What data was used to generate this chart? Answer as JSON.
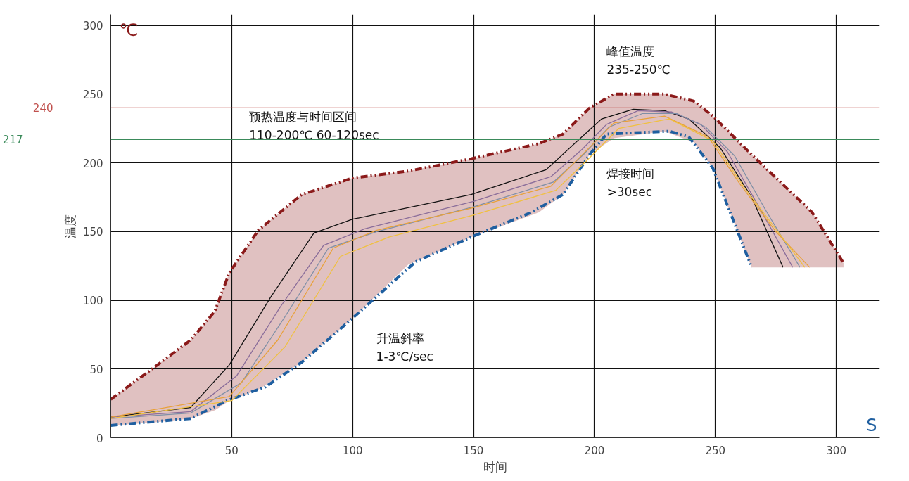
{
  "chart_data": {
    "type": "line",
    "xlabel": "时间",
    "ylabel": "温度",
    "xlim": [
      0,
      318
    ],
    "ylim": [
      0,
      308
    ],
    "xticks": [
      50,
      100,
      150,
      200,
      250,
      300
    ],
    "yticks": [
      0,
      50,
      100,
      150,
      200,
      250,
      300
    ],
    "grid": true,
    "ref_lines": [
      {
        "axis": "y",
        "value": 240,
        "label": "240",
        "color": "#c0504d"
      },
      {
        "axis": "y",
        "value": 217,
        "label": "217",
        "color": "#3a8a5a"
      }
    ],
    "annotations": [
      "℃",
      "S",
      "峰值温度\n235-250℃",
      "预热温度与时间区间\n110-200℃ 60-120sec",
      "焊接时间\n>30sec",
      "升温斜率\n1-3℃/sec"
    ],
    "series": [
      {
        "line_style": "dashed",
        "color": "#8b1a1a",
        "lower": [
          9,
          11,
          14,
          20,
          27,
          35,
          55,
          87,
          126,
          146,
          164,
          177,
          206,
          218,
          223,
          215,
          196,
          124,
          124,
          124
        ],
        "upper": [
          28,
          50,
          71,
          92,
          120,
          151,
          177,
          189,
          194,
          203,
          214,
          221,
          240,
          250,
          250,
          245,
          234,
          206,
          164,
          127
        ],
        "x": [
          0,
          17,
          33,
          43,
          49,
          61,
          79,
          100,
          123,
          149,
          177,
          187,
          198,
          208,
          229,
          241,
          249,
          265,
          290,
          303
        ],
        "values": [
          28,
          50,
          71,
          92,
          120,
          151,
          177,
          189,
          194,
          203,
          214,
          221,
          240,
          250,
          250,
          245,
          234,
          206,
          164,
          127
        ]
      },
      {
        "line_style": "dashed",
        "color": "#1f5fa0",
        "x": [
          0,
          33,
          48,
          64,
          79,
          100,
          126,
          149,
          174,
          187,
          198,
          205,
          231,
          239,
          249,
          265
        ],
        "values": [
          9,
          14,
          27,
          37,
          55,
          87,
          128,
          146,
          164,
          177,
          206,
          221,
          223,
          219,
          196,
          124
        ]
      },
      {
        "color": "#111111",
        "x": [
          0,
          33,
          49,
          66,
          84,
          100,
          149,
          180,
          193,
          203,
          216,
          229,
          239,
          252,
          265,
          278
        ],
        "values": [
          15,
          22,
          53,
          102,
          149,
          159,
          177,
          195,
          216,
          232,
          239,
          238,
          232,
          211,
          175,
          124
        ]
      },
      {
        "color": "#8a6d9a",
        "x": [
          0,
          33,
          52,
          70,
          88,
          105,
          150,
          182,
          195,
          205,
          218,
          232,
          244,
          255,
          268,
          282
        ],
        "values": [
          15,
          19,
          45,
          95,
          140,
          152,
          172,
          190,
          210,
          228,
          238,
          237,
          228,
          208,
          168,
          124
        ]
      },
      {
        "color": "#7f8fa6",
        "x": [
          0,
          33,
          54,
          72,
          90,
          110,
          150,
          183,
          196,
          206,
          220,
          234,
          246,
          258,
          271,
          285
        ],
        "values": [
          14,
          18,
          40,
          88,
          138,
          150,
          168,
          186,
          207,
          226,
          236,
          236,
          226,
          205,
          165,
          124
        ]
      },
      {
        "color": "#e8a13a",
        "x": [
          0,
          49,
          69,
          92,
          110,
          149,
          182,
          195,
          208,
          229,
          247,
          260,
          275,
          289
        ],
        "values": [
          15,
          30,
          71,
          138,
          151,
          167,
          183,
          206,
          229,
          234,
          219,
          185,
          150,
          124
        ]
      },
      {
        "color": "#f0c040",
        "x": [
          0,
          50,
          72,
          95,
          115,
          150,
          184,
          197,
          210,
          231,
          249,
          262,
          278,
          287
        ],
        "values": [
          14,
          27,
          66,
          132,
          146,
          162,
          180,
          202,
          225,
          232,
          216,
          182,
          145,
          124
        ]
      }
    ]
  }
}
